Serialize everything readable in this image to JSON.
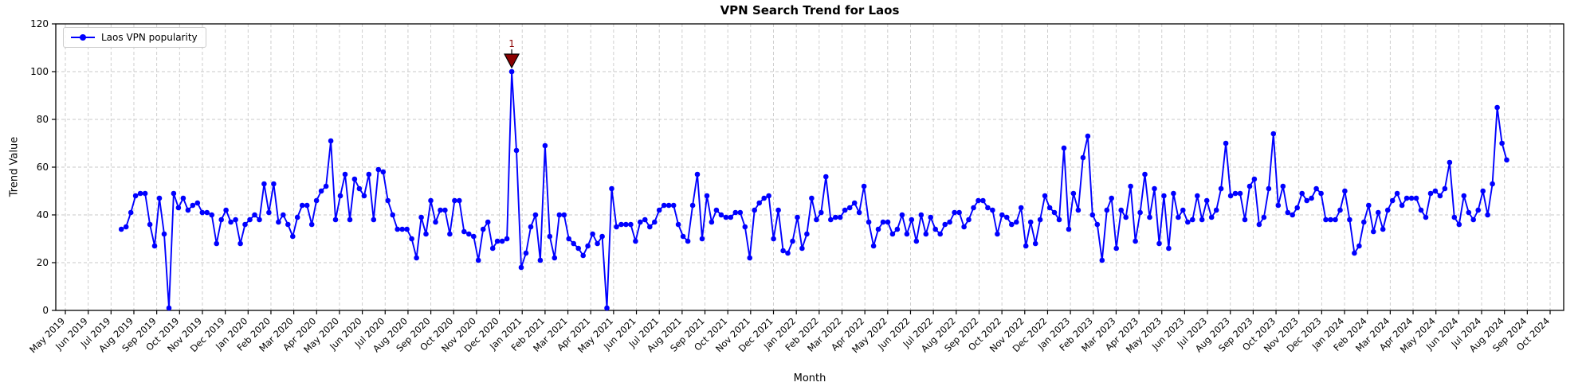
{
  "chart_data": {
    "type": "line",
    "title": "VPN Search Trend for Laos",
    "xlabel": "Month",
    "ylabel": "Trend Value",
    "grid": true,
    "grid_style": "dashed",
    "legend_position": "upper left",
    "ylim": [
      0,
      120
    ],
    "yticks": [
      0,
      20,
      40,
      60,
      80,
      100,
      120
    ],
    "x_tick_labels": [
      "May 2019",
      "Jun 2019",
      "Jul 2019",
      "Aug 2019",
      "Sep 2019",
      "Oct 2019",
      "Nov 2019",
      "Dec 2019",
      "Jan 2020",
      "Feb 2020",
      "Mar 2020",
      "Apr 2020",
      "May 2020",
      "Jun 2020",
      "Jul 2020",
      "Aug 2020",
      "Sep 2020",
      "Oct 2020",
      "Nov 2020",
      "Dec 2020",
      "Jan 2021",
      "Feb 2021",
      "Mar 2021",
      "Apr 2021",
      "May 2021",
      "Jun 2021",
      "Jul 2021",
      "Aug 2021",
      "Sep 2021",
      "Oct 2021",
      "Nov 2021",
      "Dec 2021",
      "Jan 2022",
      "Feb 2022",
      "Mar 2022",
      "Apr 2022",
      "May 2022",
      "Jun 2022",
      "Jul 2022",
      "Aug 2022",
      "Sep 2022",
      "Oct 2022",
      "Nov 2022",
      "Dec 2022",
      "Jan 2023",
      "Feb 2023",
      "Mar 2023",
      "Apr 2023",
      "May 2023",
      "Jun 2023",
      "Jul 2023",
      "Aug 2023",
      "Sep 2023",
      "Oct 2023",
      "Nov 2023",
      "Dec 2023",
      "Jan 2024",
      "Feb 2024",
      "Mar 2024",
      "Apr 2024",
      "May 2024",
      "Jun 2024",
      "Jul 2024",
      "Aug 2024",
      "Sep 2024",
      "Oct 2024"
    ],
    "x_months_span": {
      "start": 2.45,
      "end": 63.1
    },
    "series": [
      {
        "name": "Laos VPN popularity",
        "color": "#0000ff",
        "marker": "circle",
        "values": [
          34,
          35,
          41,
          48,
          49,
          49,
          36,
          27,
          47,
          32,
          1,
          49,
          43,
          47,
          42,
          44,
          45,
          41,
          41,
          40,
          28,
          38,
          42,
          37,
          38,
          28,
          36,
          38,
          40,
          38,
          53,
          41,
          53,
          37,
          40,
          36,
          31,
          39,
          44,
          44,
          36,
          46,
          50,
          52,
          71,
          38,
          48,
          57,
          38,
          55,
          51,
          48,
          57,
          38,
          59,
          58,
          46,
          40,
          34,
          34,
          34,
          30,
          22,
          39,
          32,
          46,
          37,
          42,
          42,
          32,
          46,
          46,
          33,
          32,
          31,
          21,
          34,
          37,
          26,
          29,
          29,
          30,
          100,
          67,
          18,
          24,
          35,
          40,
          21,
          69,
          31,
          22,
          40,
          40,
          30,
          28,
          26,
          23,
          27,
          32,
          28,
          31,
          1,
          51,
          35,
          36,
          36,
          36,
          29,
          37,
          38,
          35,
          37,
          42,
          44,
          44,
          44,
          36,
          31,
          29,
          44,
          57,
          30,
          48,
          37,
          42,
          40,
          39,
          39,
          41,
          41,
          35,
          22,
          42,
          45,
          47,
          48,
          30,
          42,
          25,
          24,
          29,
          39,
          26,
          32,
          47,
          38,
          41,
          56,
          38,
          39,
          39,
          42,
          43,
          45,
          41,
          52,
          37,
          27,
          34,
          37,
          37,
          32,
          34,
          40,
          32,
          38,
          29,
          40,
          32,
          39,
          34,
          32,
          36,
          37,
          41,
          41,
          35,
          38,
          43,
          46,
          46,
          43,
          42,
          32,
          40,
          39,
          36,
          37,
          43,
          27,
          37,
          28,
          38,
          48,
          43,
          41,
          38,
          68,
          34,
          49,
          42,
          64,
          73,
          40,
          36,
          21,
          42,
          47,
          26,
          42,
          39,
          52,
          29,
          41,
          57,
          39,
          51,
          28,
          48,
          26,
          49,
          39,
          42,
          37,
          38,
          48,
          38,
          46,
          39,
          42,
          51,
          70,
          48,
          49,
          49,
          38,
          52,
          55,
          36,
          39,
          51,
          74,
          44,
          52,
          41,
          40,
          43,
          49,
          46,
          47,
          51,
          49,
          38,
          38,
          38,
          42,
          50,
          38,
          24,
          27,
          37,
          44,
          33,
          41,
          34,
          42,
          46,
          49,
          44,
          47,
          47,
          47,
          42,
          39,
          49,
          50,
          48,
          51,
          62,
          39,
          36,
          48,
          41,
          38,
          42,
          50,
          40,
          53,
          85,
          70,
          63
        ]
      }
    ],
    "annotation": {
      "text": "1",
      "color": "#8b0000",
      "marker": "triangle-down",
      "point_index": 82,
      "point_value": 100
    },
    "colors": {
      "line": "#0000ff",
      "grid": "#c9c9c9",
      "spine": "#000000",
      "annotation": "#8b0000",
      "legend_border": "#cccccc"
    }
  }
}
